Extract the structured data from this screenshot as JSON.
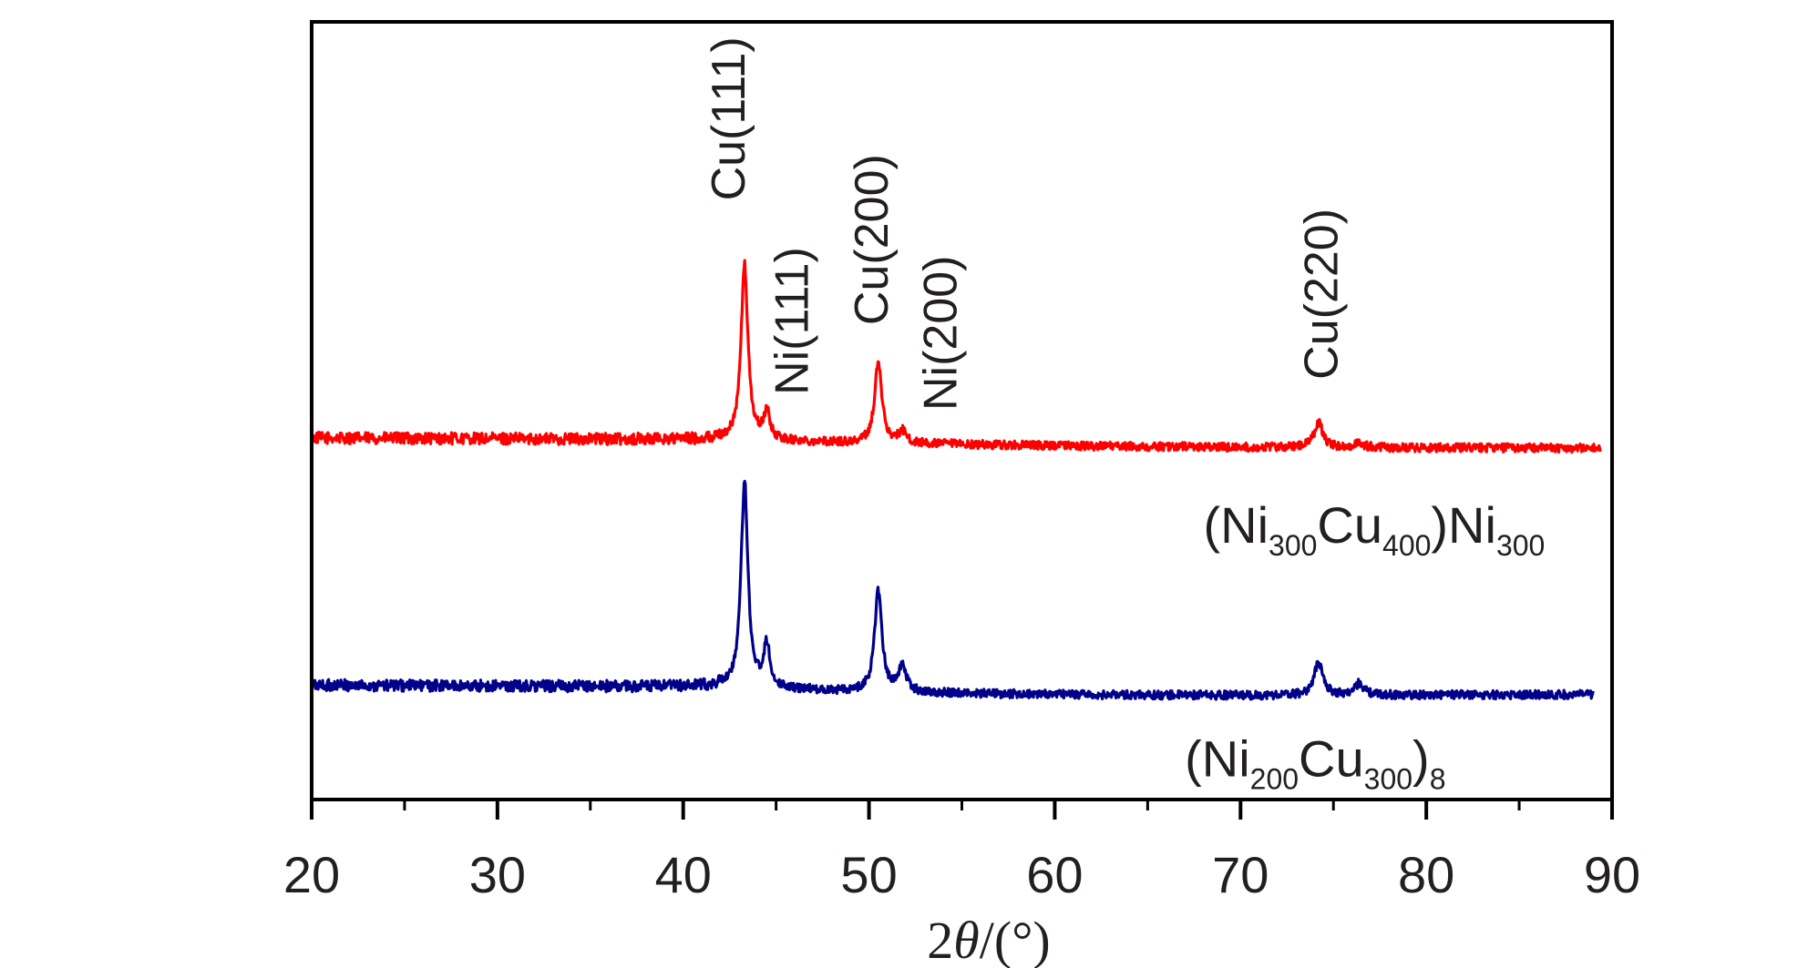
{
  "chart_data": {
    "type": "line",
    "title": "",
    "xlabel": "2θ/(°)",
    "xlabel_parts": {
      "coef": "2",
      "symbol": "θ",
      "unit": "/(°)"
    },
    "ylabel": "",
    "xlim": [
      20,
      90
    ],
    "ylim": [
      0,
      1
    ],
    "x_ticks": [
      20,
      30,
      40,
      50,
      60,
      70,
      80,
      90
    ],
    "x_tick_labels": [
      "20",
      "30",
      "40",
      "50",
      "60",
      "70",
      "80",
      "90"
    ],
    "y_ticks_shown": false,
    "grid": false,
    "legend": "none",
    "series": [
      {
        "name": "(Ni300Cu400)Ni300",
        "label_parts": [
          {
            "t": "(Ni",
            "sub": false
          },
          {
            "t": "300",
            "sub": true
          },
          {
            "t": "Cu",
            "sub": false
          },
          {
            "t": "400",
            "sub": true
          },
          {
            "t": ")Ni",
            "sub": false
          },
          {
            "t": "300",
            "sub": true
          }
        ],
        "color": "#ff0000",
        "x_range": [
          20,
          89.4
        ],
        "baseline": [
          [
            20,
            0.465
          ],
          [
            42,
            0.463
          ],
          [
            50,
            0.458
          ],
          [
            60,
            0.455
          ],
          [
            70,
            0.453
          ],
          [
            89.4,
            0.452
          ]
        ],
        "peaks": [
          {
            "x": 43.3,
            "height": 0.225,
            "width": 0.28
          },
          {
            "x": 44.5,
            "height": 0.035,
            "width": 0.25
          },
          {
            "x": 50.5,
            "height": 0.103,
            "width": 0.3
          },
          {
            "x": 51.8,
            "height": 0.015,
            "width": 0.3
          },
          {
            "x": 74.2,
            "height": 0.032,
            "width": 0.35
          },
          {
            "x": 76.4,
            "height": 0.006,
            "width": 0.35
          }
        ]
      },
      {
        "name": "(Ni200Cu300)8",
        "label_parts": [
          {
            "t": "(Ni",
            "sub": false
          },
          {
            "t": "200",
            "sub": true
          },
          {
            "t": "Cu",
            "sub": false
          },
          {
            "t": "300",
            "sub": true
          },
          {
            "t": ")",
            "sub": false
          },
          {
            "t": "8",
            "sub": true
          }
        ],
        "color": "#00008b",
        "x_range": [
          20,
          89
        ],
        "baseline": [
          [
            20,
            0.147
          ],
          [
            42,
            0.145
          ],
          [
            50,
            0.138
          ],
          [
            60,
            0.135
          ],
          [
            70,
            0.134
          ],
          [
            89,
            0.135
          ]
        ],
        "peaks": [
          {
            "x": 43.3,
            "height": 0.265,
            "width": 0.28
          },
          {
            "x": 44.5,
            "height": 0.055,
            "width": 0.25
          },
          {
            "x": 50.5,
            "height": 0.13,
            "width": 0.3
          },
          {
            "x": 51.8,
            "height": 0.035,
            "width": 0.3
          },
          {
            "x": 74.2,
            "height": 0.042,
            "width": 0.35
          },
          {
            "x": 76.4,
            "height": 0.015,
            "width": 0.35
          }
        ]
      }
    ],
    "peak_labels": [
      {
        "text": "Cu(111)",
        "x": 43.3,
        "y": 0.77
      },
      {
        "text": "Ni(111)",
        "x": 46.7,
        "y": 0.52
      },
      {
        "text": "Cu(200)",
        "x": 51.0,
        "y": 0.61
      },
      {
        "text": "Ni(200)",
        "x": 54.7,
        "y": 0.5
      },
      {
        "text": "Cu(220)",
        "x": 75.2,
        "y": 0.54
      }
    ],
    "series_labels": [
      {
        "series": 0,
        "x": 68.0,
        "y": 0.33
      },
      {
        "series": 1,
        "x": 67.0,
        "y": 0.03
      }
    ]
  }
}
